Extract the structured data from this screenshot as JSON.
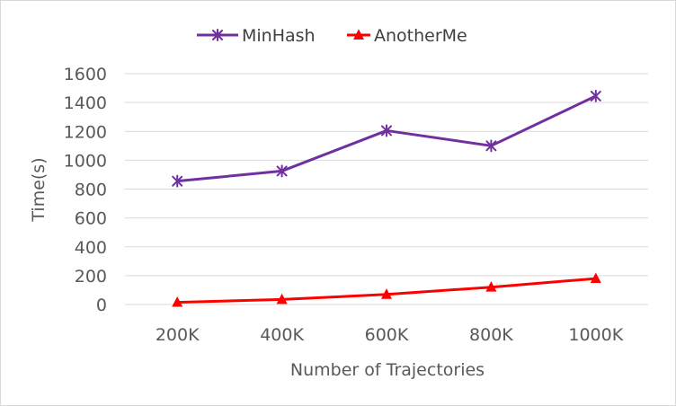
{
  "chart_data": {
    "type": "line",
    "title": "",
    "xlabel": "Number of Trajectories",
    "ylabel": "Time(s)",
    "categories": [
      "200K",
      "400K",
      "600K",
      "800K",
      "1000K"
    ],
    "ylim": [
      0,
      1600
    ],
    "yticks": [
      0,
      200,
      400,
      600,
      800,
      1000,
      1200,
      1400,
      1600
    ],
    "grid": true,
    "legend_position": "top-center",
    "series": [
      {
        "name": "MinHash",
        "values": [
          855,
          925,
          1205,
          1100,
          1445
        ],
        "color": "#7030a0",
        "marker": "star"
      },
      {
        "name": "AnotherMe",
        "values": [
          15,
          35,
          70,
          120,
          180
        ],
        "color": "#ff0000",
        "marker": "triangle"
      }
    ]
  }
}
